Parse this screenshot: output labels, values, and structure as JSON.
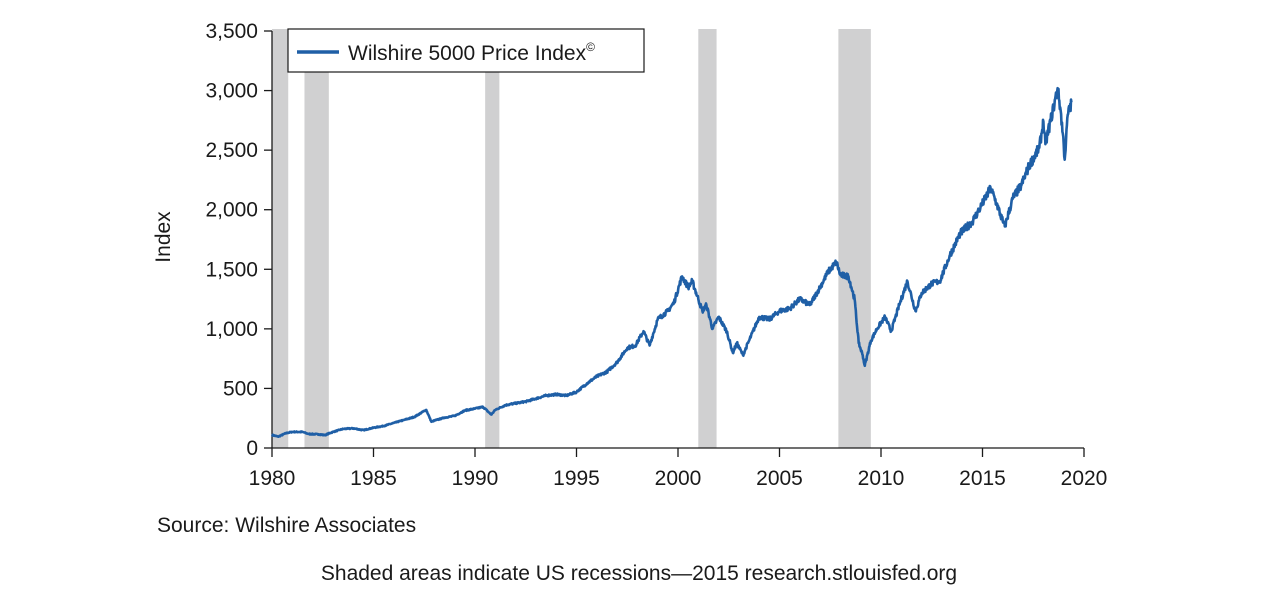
{
  "chart_data": {
    "type": "line",
    "title": "",
    "xlabel": "",
    "ylabel": "Index",
    "xlim": [
      1980,
      2020
    ],
    "ylim": [
      0,
      3500
    ],
    "x_ticks": [
      1980,
      1985,
      1990,
      1995,
      2000,
      2005,
      2010,
      2015,
      2020
    ],
    "x_tick_labels": [
      "1980",
      "1985",
      "1990",
      "1995",
      "2000",
      "2005",
      "2010",
      "2015",
      "2020"
    ],
    "y_ticks": [
      0,
      500,
      1000,
      1500,
      2000,
      2500,
      3000,
      3500
    ],
    "y_tick_labels": [
      "0",
      "500",
      "1,000",
      "1,500",
      "2,000",
      "2,500",
      "3,000",
      "3,500"
    ],
    "legend": {
      "label": "Wilshire 5000 Price Index",
      "mark": "©",
      "position": "top-left"
    },
    "recessions": [
      {
        "start": 1980.0,
        "end": 1980.8
      },
      {
        "start": 1981.6,
        "end": 1982.8
      },
      {
        "start": 1990.5,
        "end": 1991.2
      },
      {
        "start": 2001.0,
        "end": 2001.9
      },
      {
        "start": 2007.9,
        "end": 2009.5
      }
    ],
    "series": [
      {
        "name": "Wilshire 5000 Price Index",
        "color": "#1f5fa6",
        "points": [
          [
            1980.0,
            110
          ],
          [
            1980.3,
            95
          ],
          [
            1980.7,
            125
          ],
          [
            1981.0,
            135
          ],
          [
            1981.5,
            135
          ],
          [
            1981.8,
            118
          ],
          [
            1982.3,
            115
          ],
          [
            1982.6,
            108
          ],
          [
            1983.0,
            135
          ],
          [
            1983.5,
            160
          ],
          [
            1984.0,
            165
          ],
          [
            1984.5,
            150
          ],
          [
            1985.0,
            170
          ],
          [
            1985.5,
            185
          ],
          [
            1986.0,
            210
          ],
          [
            1986.5,
            235
          ],
          [
            1987.0,
            260
          ],
          [
            1987.6,
            320
          ],
          [
            1987.85,
            220
          ],
          [
            1988.0,
            230
          ],
          [
            1988.5,
            255
          ],
          [
            1989.0,
            270
          ],
          [
            1989.5,
            315
          ],
          [
            1990.0,
            330
          ],
          [
            1990.4,
            345
          ],
          [
            1990.8,
            280
          ],
          [
            1991.0,
            320
          ],
          [
            1991.5,
            360
          ],
          [
            1992.0,
            375
          ],
          [
            1992.5,
            390
          ],
          [
            1993.0,
            415
          ],
          [
            1993.5,
            440
          ],
          [
            1994.0,
            450
          ],
          [
            1994.5,
            440
          ],
          [
            1995.0,
            470
          ],
          [
            1995.5,
            540
          ],
          [
            1996.0,
            600
          ],
          [
            1996.5,
            640
          ],
          [
            1997.0,
            720
          ],
          [
            1997.5,
            840
          ],
          [
            1997.9,
            860
          ],
          [
            1998.3,
            980
          ],
          [
            1998.6,
            860
          ],
          [
            1999.0,
            1080
          ],
          [
            1999.5,
            1150
          ],
          [
            1999.8,
            1220
          ],
          [
            2000.2,
            1440
          ],
          [
            2000.5,
            1350
          ],
          [
            2000.7,
            1400
          ],
          [
            2001.0,
            1250
          ],
          [
            2001.2,
            1150
          ],
          [
            2001.4,
            1200
          ],
          [
            2001.7,
            1000
          ],
          [
            2002.0,
            1100
          ],
          [
            2002.4,
            980
          ],
          [
            2002.7,
            800
          ],
          [
            2002.9,
            880
          ],
          [
            2003.2,
            780
          ],
          [
            2003.5,
            900
          ],
          [
            2004.0,
            1100
          ],
          [
            2004.5,
            1080
          ],
          [
            2005.0,
            1150
          ],
          [
            2005.5,
            1170
          ],
          [
            2006.0,
            1250
          ],
          [
            2006.5,
            1200
          ],
          [
            2007.0,
            1350
          ],
          [
            2007.4,
            1480
          ],
          [
            2007.8,
            1560
          ],
          [
            2008.0,
            1450
          ],
          [
            2008.4,
            1440
          ],
          [
            2008.7,
            1250
          ],
          [
            2008.9,
            880
          ],
          [
            2009.1,
            780
          ],
          [
            2009.2,
            690
          ],
          [
            2009.5,
            900
          ],
          [
            2009.8,
            1000
          ],
          [
            2010.2,
            1100
          ],
          [
            2010.5,
            980
          ],
          [
            2010.9,
            1200
          ],
          [
            2011.3,
            1400
          ],
          [
            2011.7,
            1150
          ],
          [
            2012.0,
            1300
          ],
          [
            2012.5,
            1380
          ],
          [
            2012.9,
            1400
          ],
          [
            2013.4,
            1620
          ],
          [
            2013.9,
            1800
          ],
          [
            2014.5,
            1900
          ],
          [
            2014.9,
            2020
          ],
          [
            2015.4,
            2180
          ],
          [
            2015.7,
            2050
          ],
          [
            2016.0,
            1900
          ],
          [
            2016.1,
            1860
          ],
          [
            2016.5,
            2100
          ],
          [
            2016.9,
            2200
          ],
          [
            2017.3,
            2370
          ],
          [
            2017.8,
            2520
          ],
          [
            2018.0,
            2740
          ],
          [
            2018.1,
            2550
          ],
          [
            2018.5,
            2860
          ],
          [
            2018.7,
            3020
          ],
          [
            2018.85,
            2830
          ],
          [
            2019.0,
            2550
          ],
          [
            2019.05,
            2420
          ],
          [
            2019.2,
            2800
          ],
          [
            2019.4,
            2900
          ]
        ]
      }
    ]
  },
  "source_text": "Source: Wilshire Associates",
  "footer_text": "Shaded areas indicate US recessions—2015 research.stlouisfed.org"
}
